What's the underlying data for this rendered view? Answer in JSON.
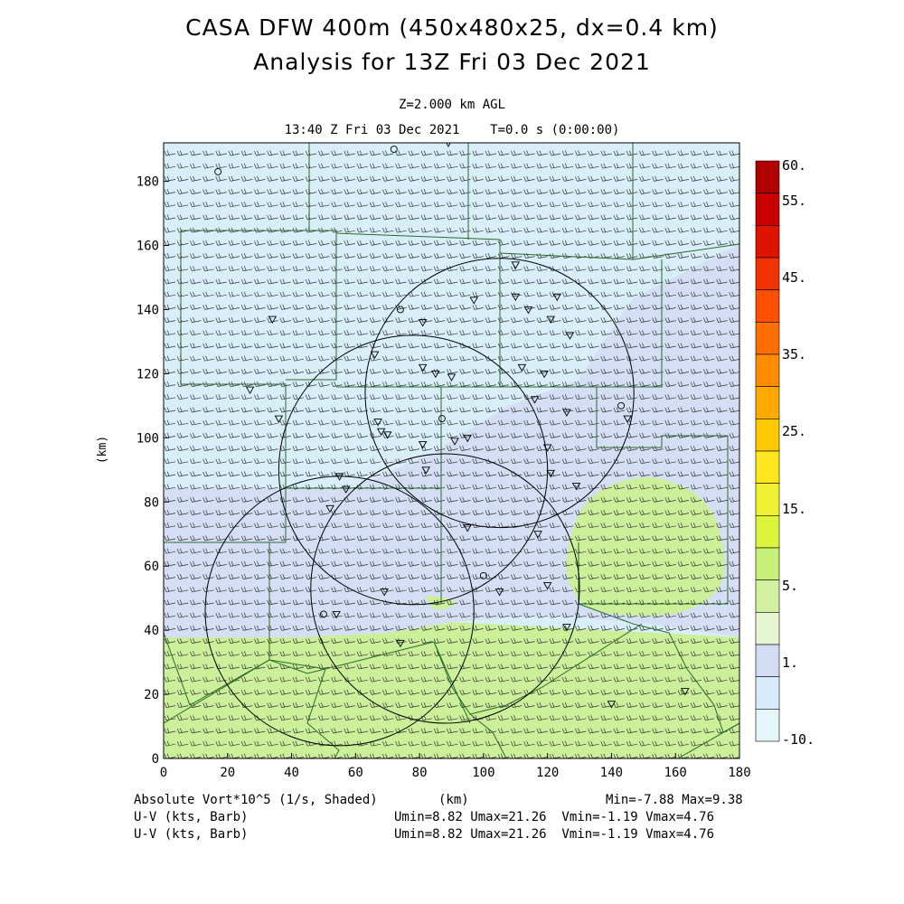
{
  "header": {
    "title_line1": "CASA DFW 400m (450x480x25, dx=0.4 km)",
    "title_line2": "Analysis for 13Z Fri 03 Dec 2021",
    "level": "Z=2.000 km AGL",
    "time": "13:40 Z Fri 03 Dec 2021    T=0.0 s (0:00:00)"
  },
  "footer": {
    "field_label": "Absolute Vort*10^5 (1/s, Shaded)",
    "xunit": "(km)",
    "minmax": "Min=-7.88 Max=9.38",
    "wind1_label": "U-V (kts, Barb)",
    "wind1_stats": "Umin=8.82 Umax=21.26  Vmin=-1.19 Vmax=4.76",
    "wind2_label": "U-V (kts, Barb)",
    "wind2_stats": "Umin=8.82 Umax=21.26  Vmin=-1.19 Vmax=4.76"
  },
  "chart_data": {
    "type": "heatmap",
    "xlabel": "",
    "ylabel": "(km)",
    "xlim": [
      0,
      180
    ],
    "ylim": [
      0,
      192
    ],
    "x_ticks": [
      0,
      20,
      40,
      60,
      80,
      100,
      120,
      140,
      160,
      180
    ],
    "y_ticks": [
      0,
      20,
      40,
      60,
      80,
      100,
      120,
      140,
      160,
      180
    ],
    "grid": false,
    "colorbar": {
      "labels": [
        {
          "text": "60.",
          "value": 60
        },
        {
          "text": "55.",
          "value": 55
        },
        {
          "text": "45.",
          "value": 45
        },
        {
          "text": "35.",
          "value": 35
        },
        {
          "text": "25.",
          "value": 25
        },
        {
          "text": "15.",
          "value": 15
        },
        {
          "text": "5.",
          "value": 5
        },
        {
          "text": "1.",
          "value": 1
        },
        {
          "text": "-10.",
          "value": -10
        }
      ],
      "colors_top_to_bottom": [
        "#b00000",
        "#c80000",
        "#dc1400",
        "#f03200",
        "#ff5000",
        "#ff6e00",
        "#ff8c00",
        "#ffaa00",
        "#ffc800",
        "#ffe61e",
        "#f0f032",
        "#dcf53c",
        "#c8f078",
        "#d2f0a0",
        "#e6f5d2",
        "#d2dcf5",
        "#d7ebfa",
        "#e6f5fa"
      ]
    },
    "field_regions": [
      {
        "name": "background",
        "level": "-10 to 1",
        "color": "#d8eef8"
      },
      {
        "name": "center-band",
        "level": "1 to 5",
        "color": "#d4def4"
      },
      {
        "name": "south-band",
        "level": "5 to 15",
        "color": "#ccf09a"
      },
      {
        "name": "east-blob",
        "level": "5 to 15",
        "color": "#ccf09a"
      }
    ],
    "radar_rings": [
      {
        "cx": 55,
        "cy": 46,
        "r": 42
      },
      {
        "cx": 88,
        "cy": 53,
        "r": 42
      },
      {
        "cx": 78,
        "cy": 90,
        "r": 42
      },
      {
        "cx": 105,
        "cy": 114,
        "r": 42
      }
    ],
    "station_markers": [
      [
        17,
        183,
        "o"
      ],
      [
        72,
        190,
        "o"
      ],
      [
        89,
        192,
        "v"
      ],
      [
        34,
        137,
        "v"
      ],
      [
        27,
        115,
        "v"
      ],
      [
        36,
        106,
        "v"
      ],
      [
        66,
        126,
        "v"
      ],
      [
        74,
        140,
        "o"
      ],
      [
        81,
        136,
        "v"
      ],
      [
        97,
        143,
        "v"
      ],
      [
        110,
        154,
        "v"
      ],
      [
        110,
        144,
        "v"
      ],
      [
        114,
        140,
        "v"
      ],
      [
        123,
        144,
        "v"
      ],
      [
        121,
        137,
        "v"
      ],
      [
        127,
        132,
        "v"
      ],
      [
        81,
        122,
        "v"
      ],
      [
        85,
        120,
        "v"
      ],
      [
        90,
        119,
        "v"
      ],
      [
        112,
        122,
        "v"
      ],
      [
        119,
        120,
        "v"
      ],
      [
        116,
        112,
        "v"
      ],
      [
        126,
        108,
        "v"
      ],
      [
        143,
        110,
        "o"
      ],
      [
        145,
        106,
        "v"
      ],
      [
        67,
        105,
        "v"
      ],
      [
        68,
        102,
        "v"
      ],
      [
        70,
        101,
        "v"
      ],
      [
        87,
        106,
        "o"
      ],
      [
        81,
        98,
        "v"
      ],
      [
        91,
        99,
        "v"
      ],
      [
        95,
        100,
        "v"
      ],
      [
        120,
        97,
        "v"
      ],
      [
        82,
        90,
        "v"
      ],
      [
        121,
        89,
        "v"
      ],
      [
        129,
        85,
        "v"
      ],
      [
        55,
        88,
        "v"
      ],
      [
        57,
        84,
        "v"
      ],
      [
        52,
        78,
        "v"
      ],
      [
        95,
        72,
        "v"
      ],
      [
        117,
        70,
        "v"
      ],
      [
        100,
        57,
        "o"
      ],
      [
        69,
        52,
        "v"
      ],
      [
        105,
        52,
        "v"
      ],
      [
        120,
        54,
        "v"
      ],
      [
        126,
        41,
        "v"
      ],
      [
        50,
        45,
        "o"
      ],
      [
        54,
        45,
        "v"
      ],
      [
        74,
        36,
        "v"
      ],
      [
        140,
        17,
        "v"
      ],
      [
        163,
        21,
        "v"
      ]
    ]
  }
}
